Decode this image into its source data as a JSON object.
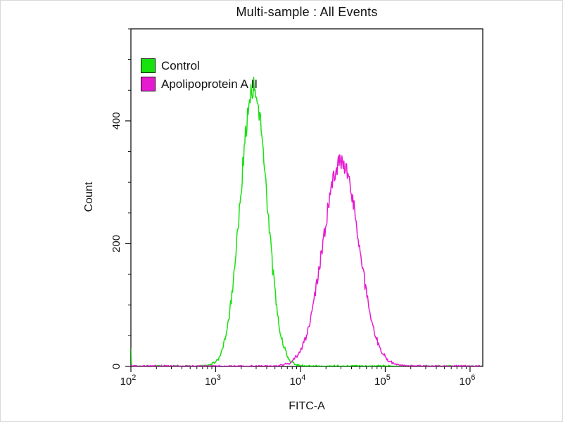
{
  "chart_data": {
    "type": "line",
    "chart_kind": "flow-cytometry-histogram-overlay",
    "title": "Multi-sample : All Events",
    "xlabel": "FITC-A",
    "ylabel": "Count",
    "x_scale": "log",
    "x_tick_exponents": [
      2,
      3,
      4,
      5,
      6
    ],
    "xlim_log10": [
      2,
      6.15
    ],
    "ylim": [
      0,
      550
    ],
    "y_major_ticks": [
      0,
      200,
      400
    ],
    "y_minor_step": 50,
    "grid": false,
    "legend_position": "top-left",
    "axis_color": "#111111",
    "series": [
      {
        "name": "Control",
        "color": "#17e20e",
        "peak_x": 2800,
        "peak_count": 455,
        "log_sigma": 0.155,
        "edge_spike": 30
      },
      {
        "name": "Apolipoprotein A II",
        "color": "#e61ad1",
        "peak_x": 30000,
        "peak_count": 335,
        "log_sigma": 0.21,
        "edge_spike": 0
      }
    ]
  }
}
